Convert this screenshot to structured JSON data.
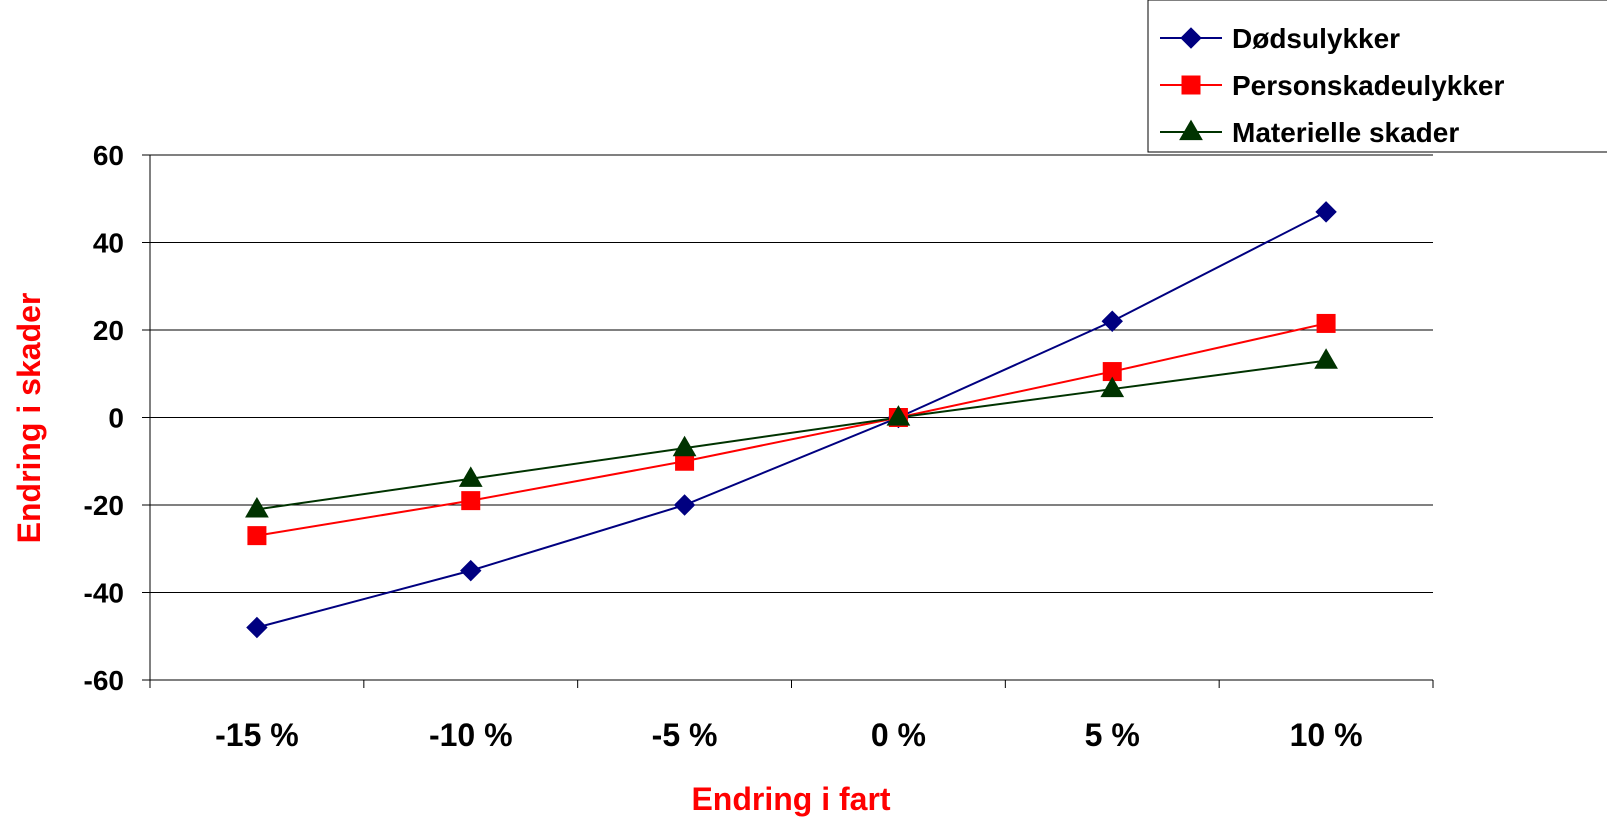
{
  "chart_data": {
    "type": "line",
    "categories": [
      "-15 %",
      "-10 %",
      "-5 %",
      "0 %",
      "5 %",
      "10 %"
    ],
    "series": [
      {
        "name": "Dødsulykker",
        "values": [
          -48,
          -35,
          -20,
          0,
          22,
          47
        ],
        "color": "#000080",
        "marker": "diamond"
      },
      {
        "name": "Personskadeulykker",
        "values": [
          -27,
          -19,
          -10,
          0,
          10.5,
          21.5
        ],
        "color": "#ff0000",
        "marker": "square"
      },
      {
        "name": "Materielle skader",
        "values": [
          -21,
          -14,
          -7,
          0,
          6.5,
          13
        ],
        "color": "#003300",
        "marker": "triangle"
      }
    ],
    "yticks": [
      60,
      40,
      20,
      0,
      -20,
      -40,
      -60
    ],
    "ylim": [
      -60,
      60
    ],
    "xlabel": "Endring i fart",
    "ylabel": "Endring i skader",
    "axis_title_color": "#ff0000",
    "grid": true,
    "legend": "top-right"
  }
}
